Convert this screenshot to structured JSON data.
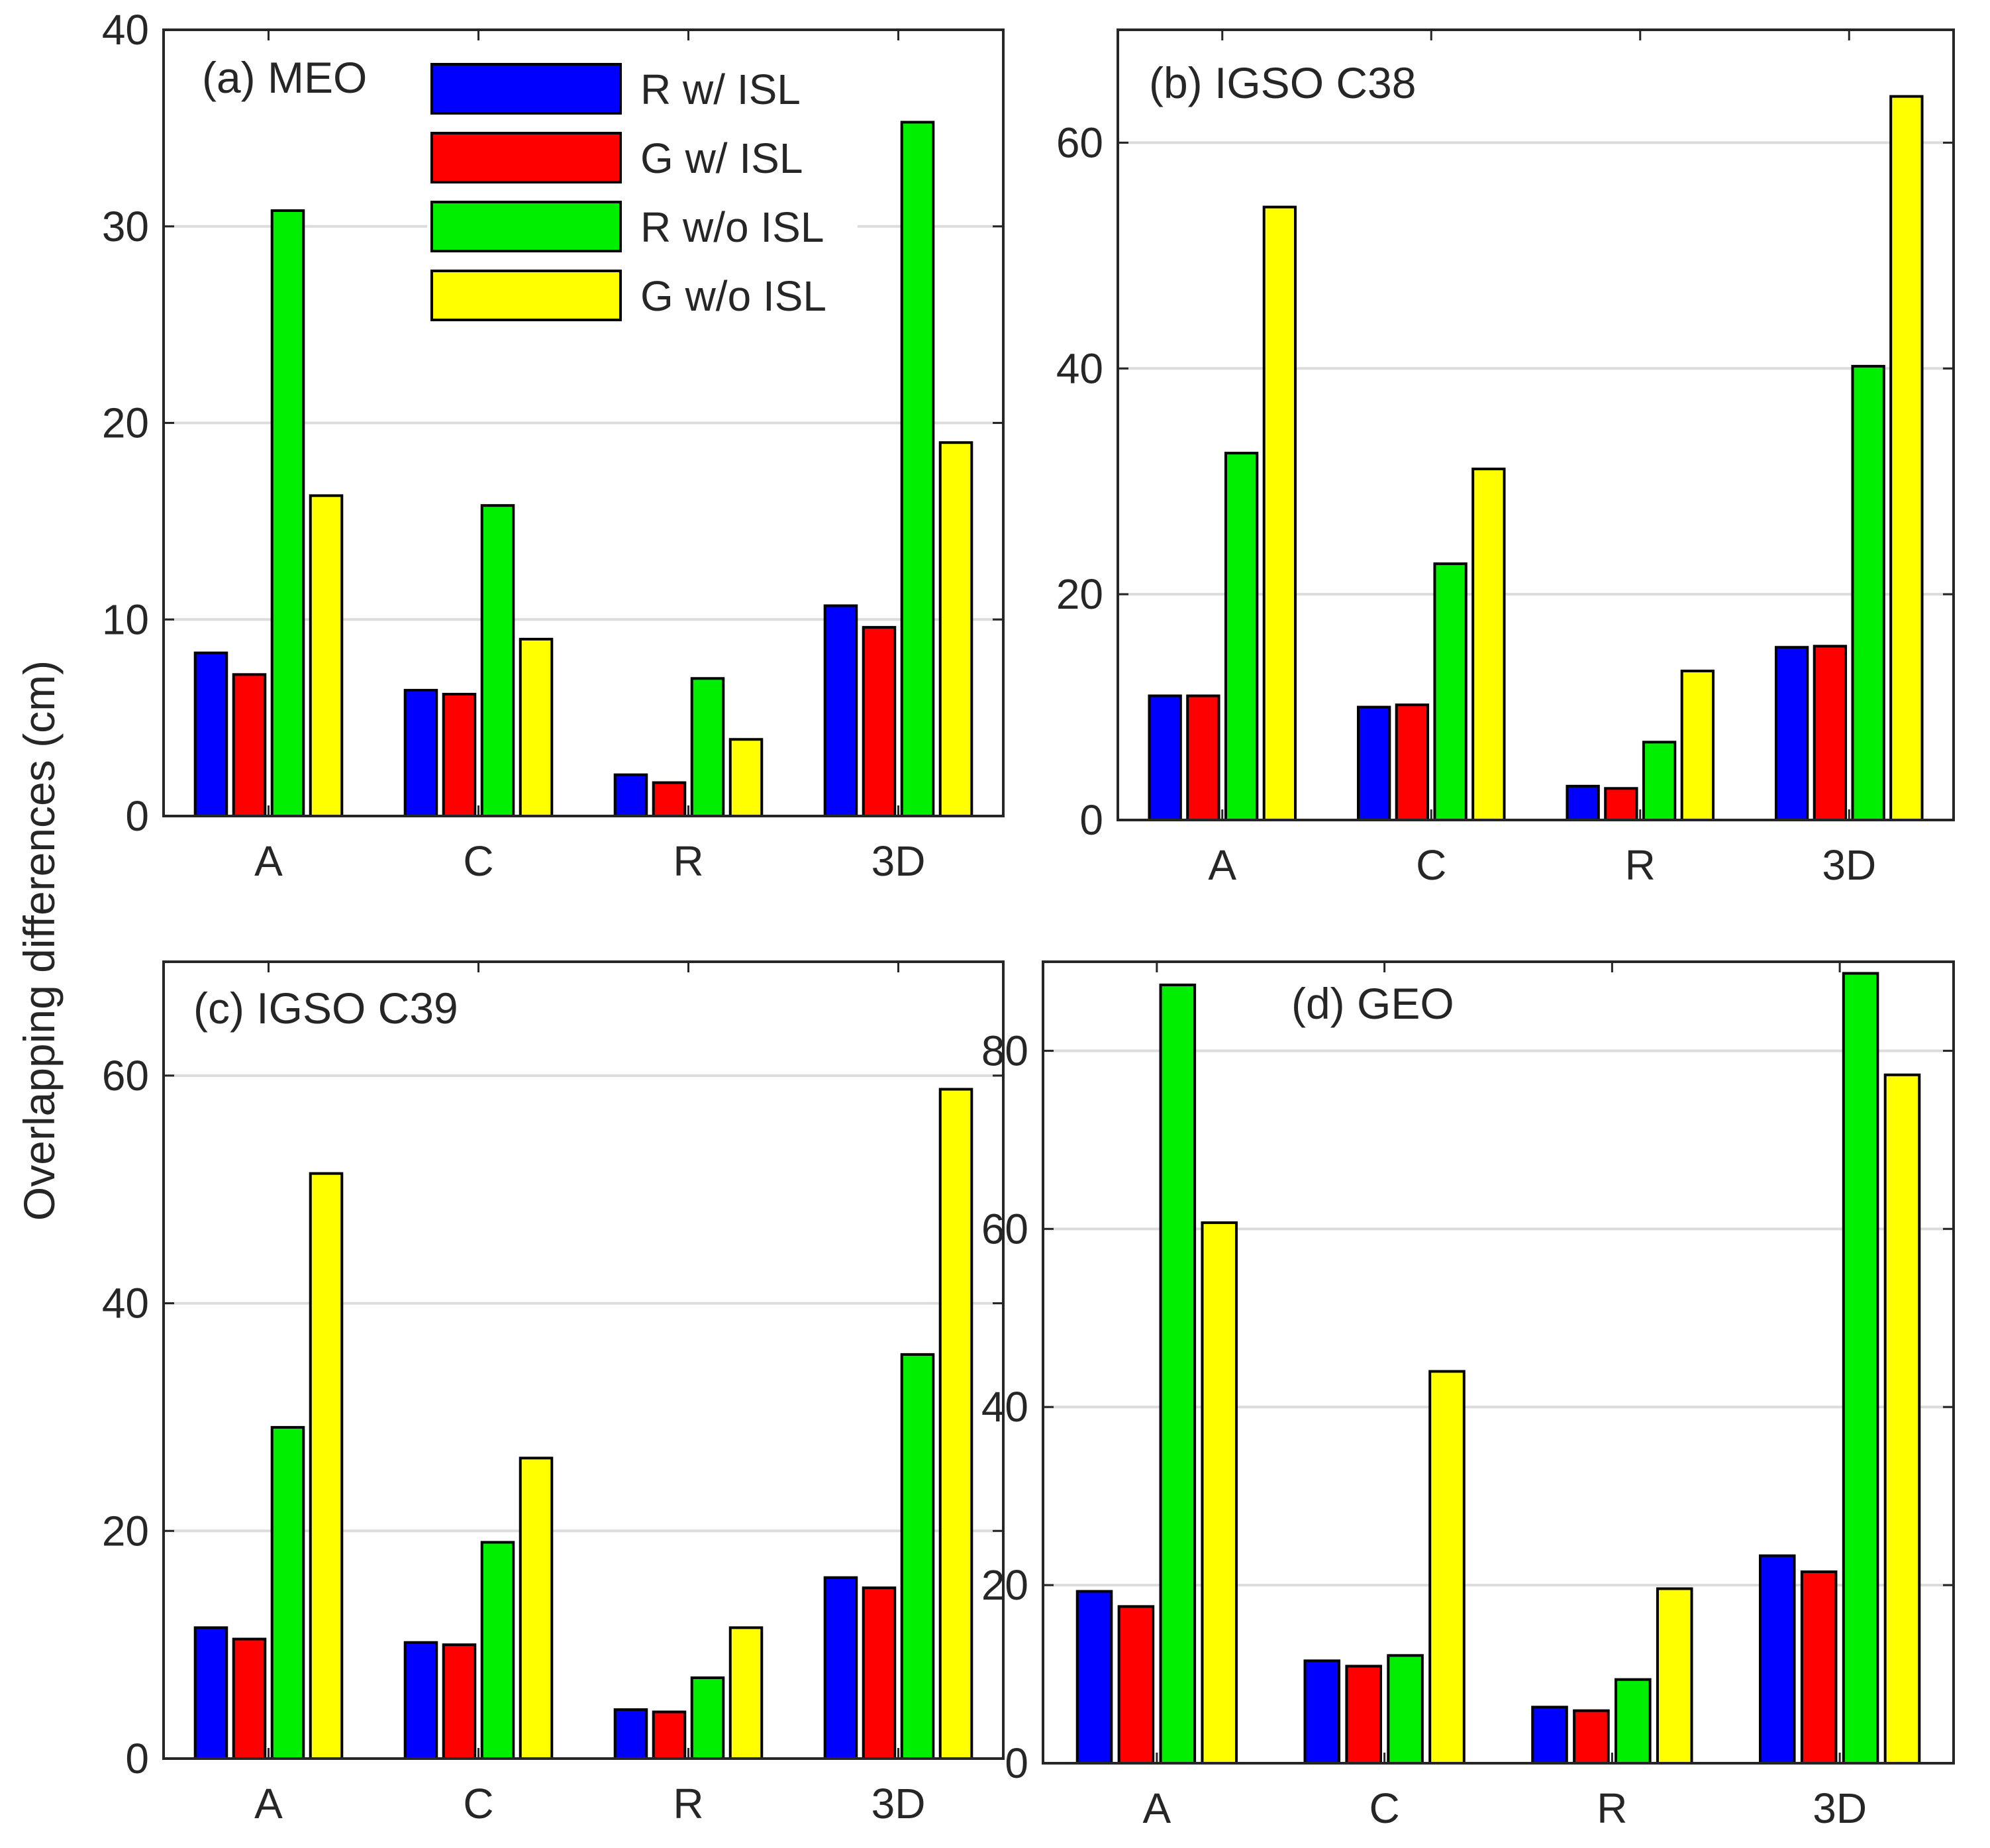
{
  "figure": {
    "ylabel": "Overlapping differences (cm)"
  },
  "legend": [
    {
      "name": "R w/ ISL",
      "color": "#0000ff"
    },
    {
      "name": "G w/ ISL",
      "color": "#ff0000"
    },
    {
      "name": "R w/o ISL",
      "color": "#00ee00"
    },
    {
      "name": "G w/o ISL",
      "color": "#ffff00"
    }
  ],
  "chart_data": [
    {
      "type": "bar",
      "title": "(a) MEO",
      "categories": [
        "A",
        "C",
        "R",
        "3D"
      ],
      "ylim": [
        0,
        40
      ],
      "yticks": [
        0,
        10,
        20,
        30,
        40
      ],
      "series": [
        {
          "name": "R w/ ISL",
          "color": "#0000ff",
          "values": [
            8.3,
            6.4,
            2.1,
            10.7
          ]
        },
        {
          "name": "G w/ ISL",
          "color": "#ff0000",
          "values": [
            7.2,
            6.2,
            1.7,
            9.6
          ]
        },
        {
          "name": "R w/o ISL",
          "color": "#00ee00",
          "values": [
            30.8,
            15.8,
            7.0,
            35.3
          ]
        },
        {
          "name": "G w/o ISL",
          "color": "#ffff00",
          "values": [
            16.3,
            9.0,
            3.9,
            19.0
          ]
        }
      ]
    },
    {
      "type": "bar",
      "title": "(b) IGSO C38",
      "categories": [
        "A",
        "C",
        "R",
        "3D"
      ],
      "ylim": [
        0,
        70
      ],
      "yticks": [
        0,
        20,
        40,
        60
      ],
      "series": [
        {
          "name": "R w/ ISL",
          "color": "#0000ff",
          "values": [
            11.0,
            10.0,
            3.0,
            15.3
          ]
        },
        {
          "name": "G w/ ISL",
          "color": "#ff0000",
          "values": [
            11.0,
            10.2,
            2.8,
            15.4
          ]
        },
        {
          "name": "R w/o ISL",
          "color": "#00ee00",
          "values": [
            32.5,
            22.7,
            6.9,
            40.2
          ]
        },
        {
          "name": "G w/o ISL",
          "color": "#ffff00",
          "values": [
            54.3,
            31.1,
            13.2,
            64.1
          ]
        }
      ]
    },
    {
      "type": "bar",
      "title": "(c) IGSO C39",
      "categories": [
        "A",
        "C",
        "R",
        "3D"
      ],
      "ylim": [
        0,
        70
      ],
      "yticks": [
        0,
        20,
        40,
        60
      ],
      "series": [
        {
          "name": "R w/ ISL",
          "color": "#0000ff",
          "values": [
            11.5,
            10.2,
            4.3,
            15.9
          ]
        },
        {
          "name": "G w/ ISL",
          "color": "#ff0000",
          "values": [
            10.5,
            10.0,
            4.1,
            15.0
          ]
        },
        {
          "name": "R w/o ISL",
          "color": "#00ee00",
          "values": [
            29.1,
            19.0,
            7.1,
            35.5
          ]
        },
        {
          "name": "G w/o ISL",
          "color": "#ffff00",
          "values": [
            51.4,
            26.4,
            11.5,
            58.8
          ]
        }
      ]
    },
    {
      "type": "bar",
      "title": "(d) GEO",
      "categories": [
        "A",
        "C",
        "R",
        "3D"
      ],
      "ylim": [
        0,
        90
      ],
      "yticks": [
        0,
        20,
        40,
        60,
        80
      ],
      "series": [
        {
          "name": "R w/ ISL",
          "color": "#0000ff",
          "values": [
            19.3,
            11.5,
            6.3,
            23.3
          ]
        },
        {
          "name": "G w/ ISL",
          "color": "#ff0000",
          "values": [
            17.6,
            10.9,
            5.9,
            21.5
          ]
        },
        {
          "name": "R w/o ISL",
          "color": "#00ee00",
          "values": [
            87.4,
            12.1,
            9.4,
            88.7
          ]
        },
        {
          "name": "G w/o ISL",
          "color": "#ffff00",
          "values": [
            60.7,
            44.0,
            19.6,
            77.3
          ]
        }
      ]
    }
  ]
}
